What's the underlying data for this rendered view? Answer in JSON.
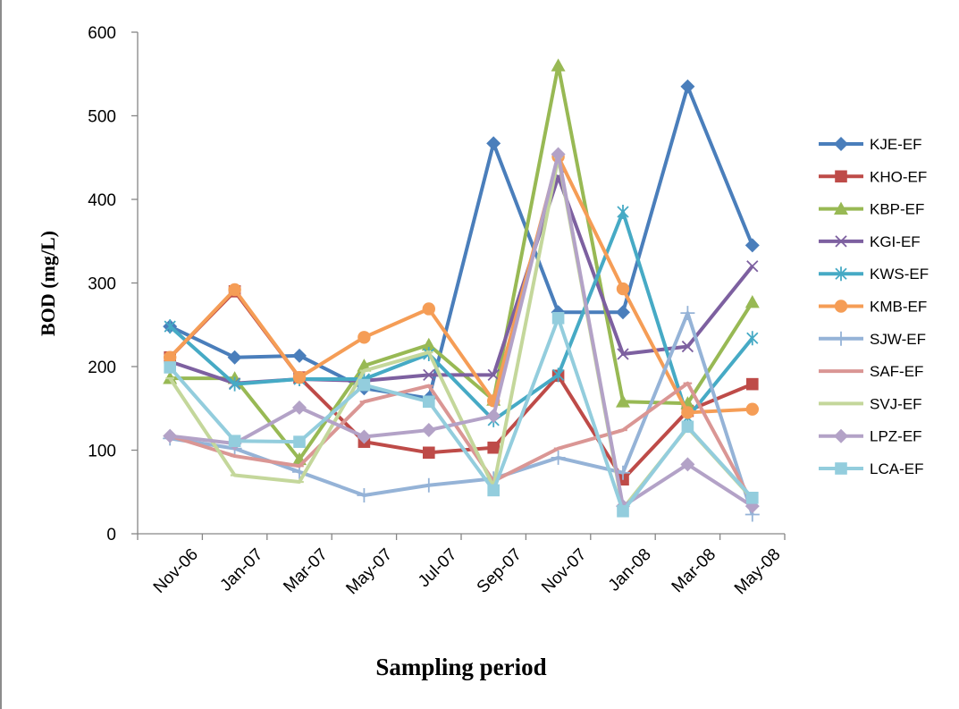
{
  "chart_data": {
    "type": "line",
    "title": "",
    "xlabel": "Sampling period",
    "ylabel": "BOD (mg/L)",
    "ylim": [
      0,
      600
    ],
    "yticks": [
      0,
      100,
      200,
      300,
      400,
      500,
      600
    ],
    "categories": [
      "Nov-06",
      "Jan-07",
      "Mar-07",
      "May-07",
      "Jul-07",
      "Sep-07",
      "Nov-07",
      "Jan-08",
      "Mar-08",
      "May-08"
    ],
    "grid": false,
    "legend_position": "right",
    "series": [
      {
        "name": "KJE-EF",
        "color": "#4a7ebb",
        "marker": "diamond",
        "values": [
          248,
          211,
          213,
          174,
          162,
          467,
          265,
          265,
          535,
          345
        ]
      },
      {
        "name": "KHO-EF",
        "color": "#be4b48",
        "marker": "square",
        "values": [
          211,
          290,
          187,
          110,
          97,
          103,
          189,
          65,
          147,
          179
        ]
      },
      {
        "name": "KBP-EF",
        "color": "#98b954",
        "marker": "triangle",
        "values": [
          186,
          186,
          89,
          201,
          226,
          160,
          560,
          158,
          156,
          277
        ]
      },
      {
        "name": "KGI-EF",
        "color": "#7d60a0",
        "marker": "x",
        "values": [
          206,
          180,
          185,
          183,
          190,
          190,
          427,
          215,
          224,
          320
        ]
      },
      {
        "name": "KWS-EF",
        "color": "#46aac5",
        "marker": "star",
        "values": [
          248,
          179,
          185,
          185,
          215,
          136,
          190,
          385,
          139,
          234
        ]
      },
      {
        "name": "KMB-EF",
        "color": "#f59d56",
        "marker": "circle",
        "values": [
          211,
          292,
          187,
          235,
          269,
          159,
          451,
          293,
          145,
          149
        ]
      },
      {
        "name": "SJW-EF",
        "color": "#95b3d7",
        "marker": "plus",
        "values": [
          114,
          102,
          74,
          46,
          58,
          66,
          91,
          73,
          264,
          23
        ]
      },
      {
        "name": "SAF-EF",
        "color": "#da9694",
        "marker": "dash",
        "values": [
          117,
          93,
          81,
          158,
          177,
          63,
          102,
          124,
          180,
          37
        ]
      },
      {
        "name": "SVJ-EF",
        "color": "#c4d79b",
        "marker": "dash",
        "values": [
          186,
          70,
          62,
          195,
          217,
          56,
          450,
          30,
          127,
          42
        ]
      },
      {
        "name": "LPZ-EF",
        "color": "#b3a2c7",
        "marker": "diamond",
        "values": [
          117,
          108,
          151,
          116,
          124,
          141,
          454,
          33,
          83,
          33
        ]
      },
      {
        "name": "LCA-EF",
        "color": "#93cddd",
        "marker": "square",
        "values": [
          199,
          111,
          110,
          178,
          158,
          52,
          258,
          27,
          128,
          43
        ]
      }
    ]
  }
}
